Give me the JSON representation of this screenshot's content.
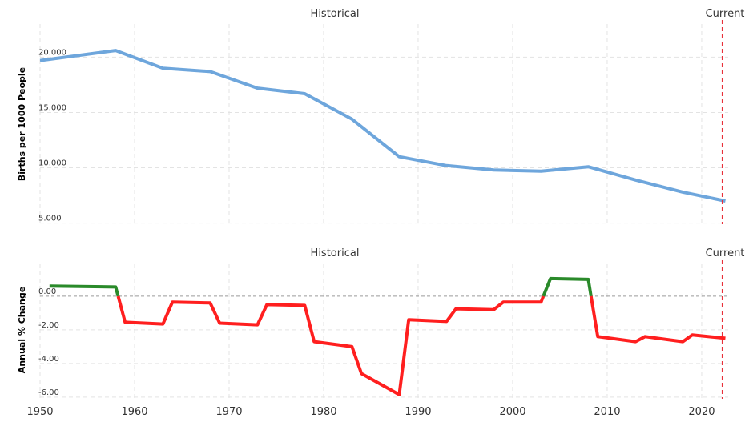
{
  "chart_data": [
    {
      "type": "line",
      "band_labels": [
        "Historical",
        "Current"
      ],
      "ylabel": "Births per 1000 People",
      "ylim": [
        4.9,
        23.0
      ],
      "yticks": [
        "20.000",
        "15.000",
        "10.000",
        "5.000"
      ],
      "ytick_values": [
        20,
        15,
        10,
        5
      ],
      "xlim": [
        1950,
        2022.8
      ],
      "current_marker_x": 2022.2,
      "grid": true,
      "color": "#6ea6dc",
      "series": [
        {
          "x": [
            1950,
            1958,
            1963,
            1968,
            1973,
            1978,
            1983,
            1988,
            1993,
            1998,
            2003,
            2008,
            2013,
            2018,
            2022.5
          ],
          "values": [
            19.7,
            20.6,
            19.0,
            18.7,
            17.2,
            16.7,
            14.4,
            11.0,
            10.2,
            9.8,
            9.7,
            10.1,
            8.9,
            7.8,
            7.0
          ]
        }
      ]
    },
    {
      "type": "line",
      "band_labels": [
        "Historical",
        "Current"
      ],
      "ylabel": "Annual % Change",
      "ylim": [
        -6.1,
        1.9
      ],
      "yticks": [
        "0.00",
        "-2.00",
        "-4.00",
        "-6.00"
      ],
      "ytick_values": [
        0,
        -2,
        -4,
        -6
      ],
      "xlim": [
        1950,
        2022.8
      ],
      "xticks": [
        "1950",
        "1960",
        "1970",
        "1980",
        "1990",
        "2000",
        "2010",
        "2020"
      ],
      "xtick_values": [
        1950,
        1960,
        1970,
        1980,
        1990,
        2000,
        2010,
        2020
      ],
      "current_marker_x": 2022.2,
      "grid": true,
      "positive_color": "#2a8a2a",
      "negative_color": "#ff1f1f",
      "series": [
        {
          "x": [
            1951,
            1958,
            1959,
            1963,
            1964,
            1968,
            1969,
            1973,
            1974,
            1978,
            1979,
            1983,
            1984,
            1988,
            1989,
            1993,
            1994,
            1998,
            1999,
            2003,
            2004,
            2008,
            2009,
            2013,
            2014,
            2018,
            2019,
            2022.5
          ],
          "values": [
            0.6,
            0.55,
            -1.55,
            -1.65,
            -0.35,
            -0.4,
            -1.6,
            -1.7,
            -0.5,
            -0.55,
            -2.7,
            -3.0,
            -4.6,
            -5.85,
            -1.4,
            -1.5,
            -0.75,
            -0.8,
            -0.35,
            -0.35,
            1.05,
            1.0,
            -2.4,
            -2.7,
            -2.4,
            -2.7,
            -2.3,
            -2.5
          ]
        }
      ]
    }
  ]
}
